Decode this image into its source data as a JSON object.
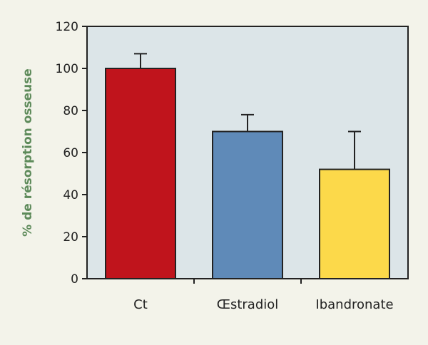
{
  "chart_data": {
    "type": "bar",
    "title": "",
    "xlabel": "",
    "ylabel": "% de résorption osseuse",
    "categories": [
      "Ct",
      "Œstradiol",
      "Ibandronate"
    ],
    "values": [
      100,
      70,
      52
    ],
    "error_upper": [
      107,
      78,
      70
    ],
    "ylim": [
      0,
      120
    ],
    "yticks": [
      0,
      20,
      40,
      60,
      80,
      100,
      120
    ],
    "grid": false,
    "legend": "none",
    "bar_colors": [
      "#c0141c",
      "#5f8ab8",
      "#fcd94a"
    ],
    "plot_background": "#dce5e8",
    "ylabel_color": "#5d8a5a"
  }
}
